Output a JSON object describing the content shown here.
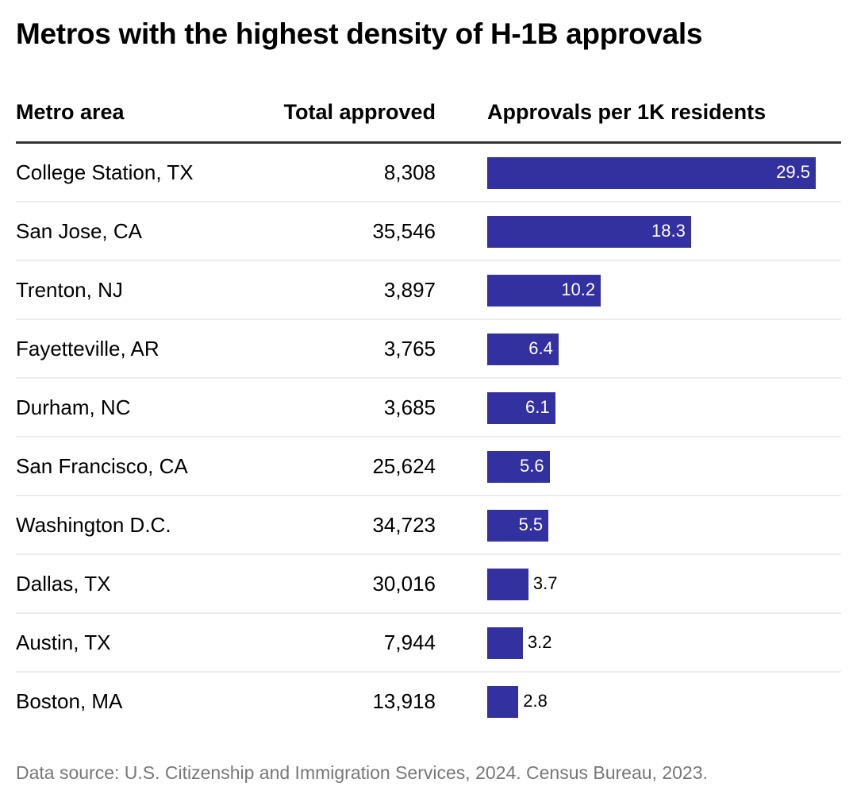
{
  "title": "Metros with the highest density of H-1B approvals",
  "headers": {
    "metro": "Metro area",
    "total": "Total approved",
    "per": "Approvals per 1K residents"
  },
  "source": "Data source: U.S. Citizenship and Immigration Services, 2024. Census Bureau, 2023.",
  "colors": {
    "bar": "#3330a0",
    "header_rule": "#333333"
  },
  "chart_data": {
    "type": "table",
    "title": "Metros with the highest density of H-1B approvals",
    "columns": [
      "Metro area",
      "Total approved",
      "Approvals per 1K residents"
    ],
    "rows": [
      {
        "metro": "College Station, TX",
        "total": "8,308",
        "per": 29.5,
        "per_label": "29.5"
      },
      {
        "metro": "San Jose, CA",
        "total": "35,546",
        "per": 18.3,
        "per_label": "18.3"
      },
      {
        "metro": "Trenton, NJ",
        "total": "3,897",
        "per": 10.2,
        "per_label": "10.2"
      },
      {
        "metro": "Fayetteville, AR",
        "total": "3,765",
        "per": 6.4,
        "per_label": "6.4"
      },
      {
        "metro": "Durham, NC",
        "total": "3,685",
        "per": 6.1,
        "per_label": "6.1"
      },
      {
        "metro": "San Francisco, CA",
        "total": "25,624",
        "per": 5.6,
        "per_label": "5.6"
      },
      {
        "metro": "Washington D.C.",
        "total": "34,723",
        "per": 5.5,
        "per_label": "5.5"
      },
      {
        "metro": "Dallas, TX",
        "total": "30,016",
        "per": 3.7,
        "per_label": "3.7"
      },
      {
        "metro": "Austin, TX",
        "total": "7,944",
        "per": 3.2,
        "per_label": "3.2"
      },
      {
        "metro": "Boston, MA",
        "total": "13,918",
        "per": 2.8,
        "per_label": "2.8"
      }
    ],
    "bar_range": [
      0,
      29.5
    ]
  }
}
